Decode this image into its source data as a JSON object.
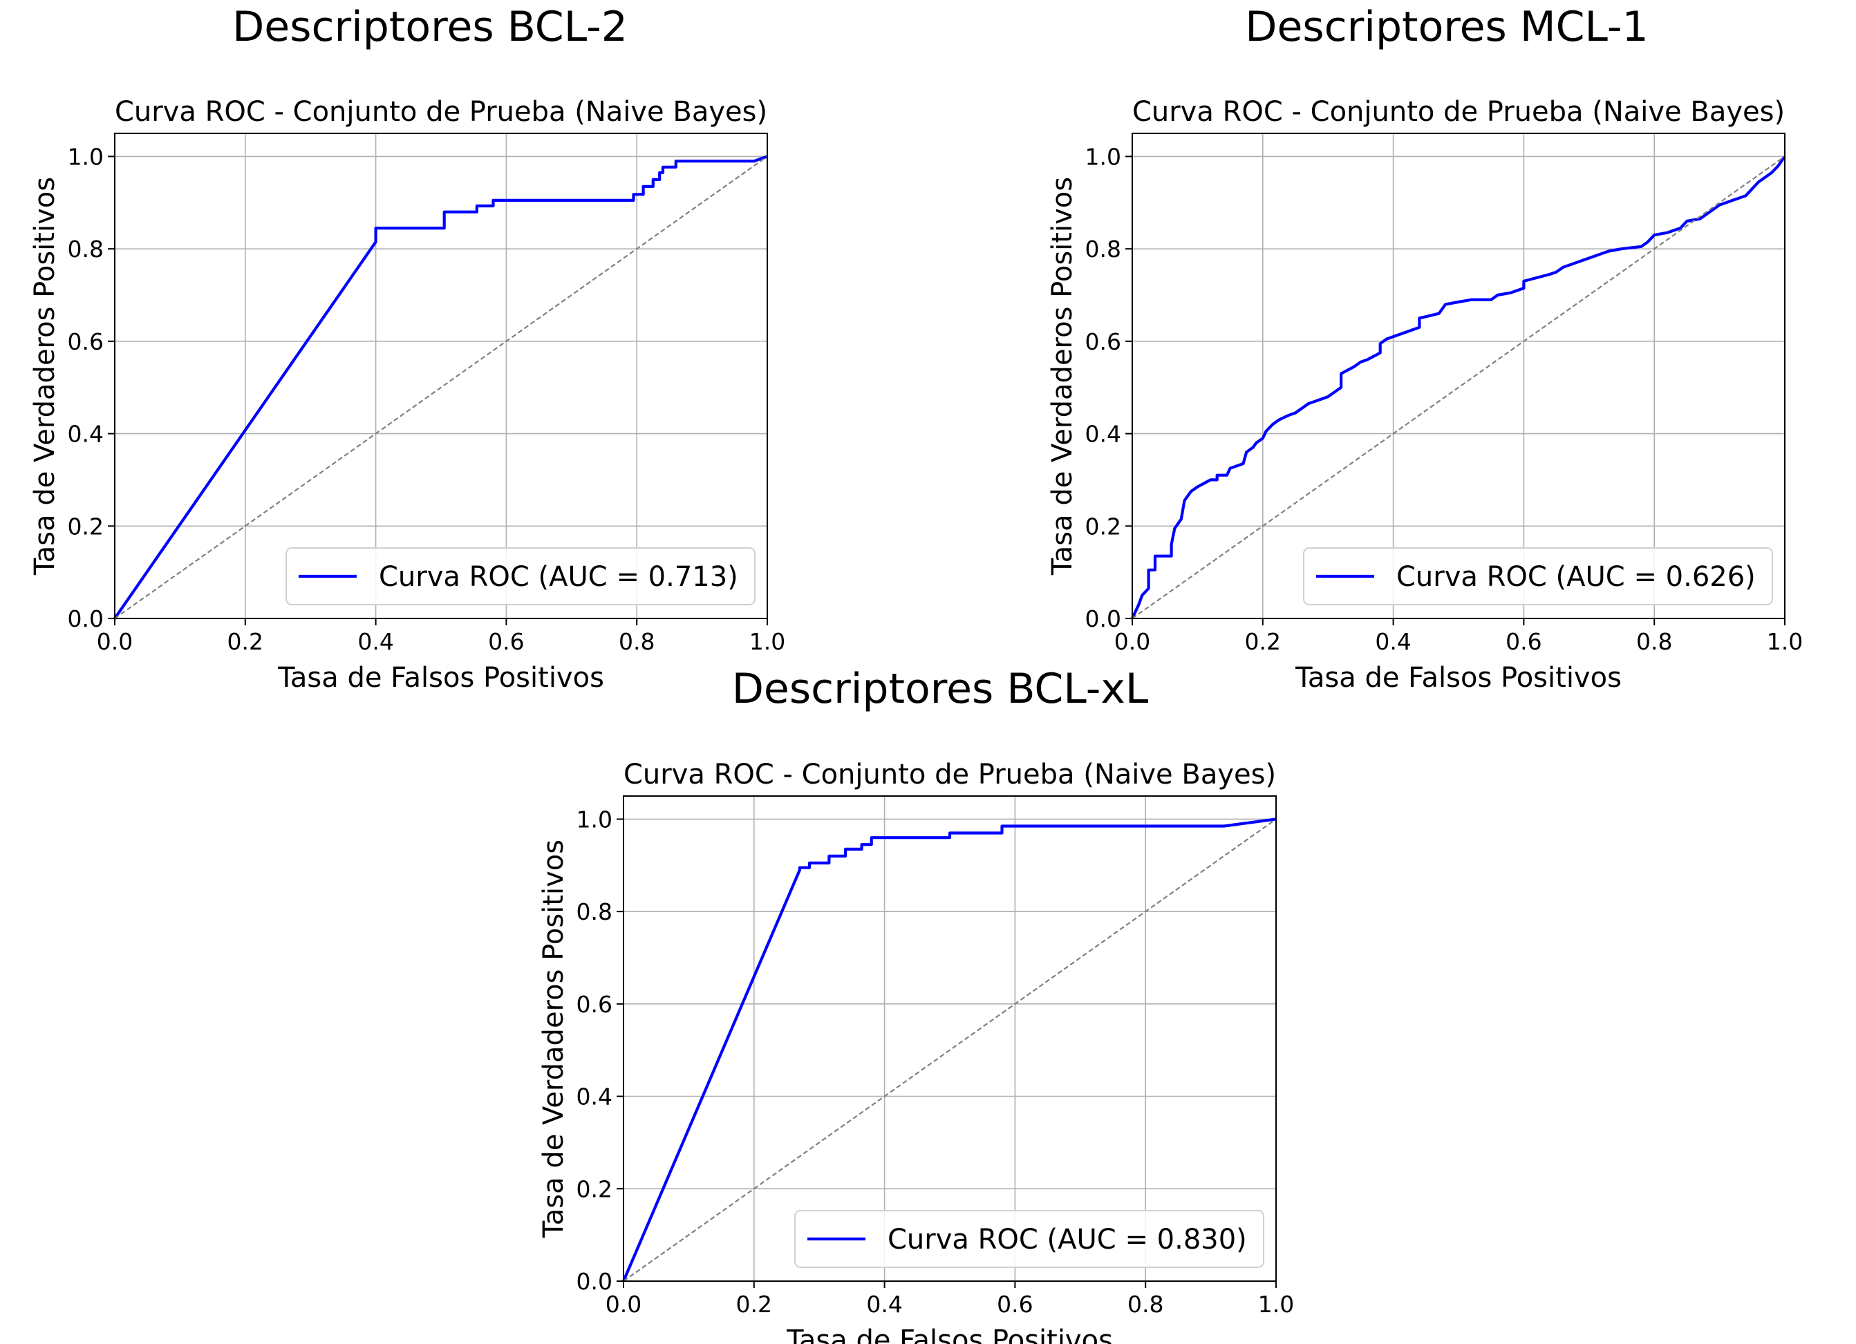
{
  "panels": [
    {
      "group_title": "Descriptores BCL-2",
      "chart_data": {
        "type": "line",
        "title": "Curva ROC - Conjunto de Prueba (Naive Bayes)",
        "xlabel": "Tasa de Falsos Positivos",
        "ylabel": "Tasa de Verdaderos Positivos",
        "xlim": [
          0,
          1
        ],
        "ylim": [
          0,
          1.05
        ],
        "xticks": [
          "0.0",
          "0.2",
          "0.4",
          "0.6",
          "0.8",
          "1.0"
        ],
        "yticks": [
          "0.0",
          "0.2",
          "0.4",
          "0.6",
          "0.8",
          "1.0"
        ],
        "grid": true,
        "legend_position": "lower-right",
        "series": [
          {
            "name": "Curva ROC (AUC = 0.713)",
            "color": "#0000ff",
            "x": [
              0,
              0.4,
              0.4,
              0.505,
              0.505,
              0.555,
              0.555,
              0.58,
              0.58,
              0.795,
              0.795,
              0.81,
              0.81,
              0.825,
              0.825,
              0.835,
              0.835,
              0.84,
              0.84,
              0.86,
              0.86,
              0.98,
              1.0
            ],
            "y": [
              0,
              0.815,
              0.845,
              0.845,
              0.88,
              0.88,
              0.893,
              0.893,
              0.905,
              0.905,
              0.918,
              0.918,
              0.935,
              0.935,
              0.95,
              0.95,
              0.965,
              0.965,
              0.977,
              0.977,
              0.99,
              0.99,
              1.0
            ]
          },
          {
            "name": "",
            "color": "#808080",
            "dashed": true,
            "x": [
              0,
              1
            ],
            "y": [
              0,
              1
            ]
          }
        ]
      }
    },
    {
      "group_title": "Descriptores MCL-1",
      "chart_data": {
        "type": "line",
        "title": "Curva ROC - Conjunto de Prueba (Naive Bayes)",
        "xlabel": "Tasa de Falsos Positivos",
        "ylabel": "Tasa de Verdaderos Positivos",
        "xlim": [
          0,
          1
        ],
        "ylim": [
          0,
          1.05
        ],
        "xticks": [
          "0.0",
          "0.2",
          "0.4",
          "0.6",
          "0.8",
          "1.0"
        ],
        "yticks": [
          "0.0",
          "0.2",
          "0.4",
          "0.6",
          "0.8",
          "1.0"
        ],
        "grid": true,
        "legend_position": "lower-right",
        "series": [
          {
            "name": "Curva ROC (AUC = 0.626)",
            "color": "#0000ff",
            "x": [
              0,
              0.01,
              0.015,
              0.025,
              0.025,
              0.035,
              0.035,
              0.06,
              0.06,
              0.065,
              0.07,
              0.075,
              0.08,
              0.085,
              0.09,
              0.1,
              0.12,
              0.13,
              0.13,
              0.145,
              0.15,
              0.16,
              0.17,
              0.175,
              0.185,
              0.19,
              0.2,
              0.205,
              0.215,
              0.225,
              0.24,
              0.25,
              0.27,
              0.28,
              0.3,
              0.31,
              0.32,
              0.32,
              0.34,
              0.35,
              0.36,
              0.38,
              0.38,
              0.39,
              0.42,
              0.43,
              0.44,
              0.44,
              0.47,
              0.48,
              0.5,
              0.52,
              0.55,
              0.56,
              0.58,
              0.6,
              0.6,
              0.64,
              0.65,
              0.66,
              0.68,
              0.7,
              0.72,
              0.73,
              0.75,
              0.78,
              0.79,
              0.8,
              0.82,
              0.83,
              0.84,
              0.85,
              0.87,
              0.88,
              0.89,
              0.9,
              0.92,
              0.94,
              0.95,
              0.96,
              0.97,
              0.98,
              0.99,
              1.0
            ],
            "y": [
              0,
              0.03,
              0.05,
              0.065,
              0.105,
              0.105,
              0.135,
              0.135,
              0.16,
              0.195,
              0.205,
              0.215,
              0.255,
              0.265,
              0.275,
              0.285,
              0.3,
              0.3,
              0.31,
              0.31,
              0.325,
              0.33,
              0.335,
              0.36,
              0.37,
              0.38,
              0.39,
              0.405,
              0.42,
              0.43,
              0.44,
              0.445,
              0.465,
              0.47,
              0.48,
              0.49,
              0.5,
              0.53,
              0.545,
              0.555,
              0.56,
              0.575,
              0.595,
              0.605,
              0.62,
              0.625,
              0.63,
              0.65,
              0.66,
              0.68,
              0.685,
              0.69,
              0.69,
              0.7,
              0.705,
              0.715,
              0.73,
              0.745,
              0.75,
              0.76,
              0.77,
              0.78,
              0.79,
              0.795,
              0.8,
              0.805,
              0.815,
              0.83,
              0.835,
              0.84,
              0.845,
              0.86,
              0.865,
              0.875,
              0.885,
              0.895,
              0.905,
              0.915,
              0.93,
              0.945,
              0.955,
              0.965,
              0.98,
              1.0
            ]
          },
          {
            "name": "",
            "color": "#808080",
            "dashed": true,
            "x": [
              0,
              1
            ],
            "y": [
              0,
              1
            ]
          }
        ]
      }
    },
    {
      "group_title": "Descriptores BCL-xL",
      "chart_data": {
        "type": "line",
        "title": "Curva ROC - Conjunto de Prueba (Naive Bayes)",
        "xlabel": "Tasa de Falsos Positivos",
        "ylabel": "Tasa de Verdaderos Positivos",
        "xlim": [
          0,
          1
        ],
        "ylim": [
          0,
          1.05
        ],
        "xticks": [
          "0.0",
          "0.2",
          "0.4",
          "0.6",
          "0.8",
          "1.0"
        ],
        "yticks": [
          "0.0",
          "0.2",
          "0.4",
          "0.6",
          "0.8",
          "1.0"
        ],
        "grid": true,
        "legend_position": "lower-right",
        "series": [
          {
            "name": "Curva ROC (AUC = 0.830)",
            "color": "#0000ff",
            "x": [
              0,
              0.27,
              0.27,
              0.285,
              0.285,
              0.315,
              0.315,
              0.34,
              0.34,
              0.365,
              0.365,
              0.38,
              0.38,
              0.5,
              0.5,
              0.58,
              0.58,
              0.92,
              1.0
            ],
            "y": [
              0,
              0.89,
              0.895,
              0.895,
              0.905,
              0.905,
              0.92,
              0.92,
              0.935,
              0.935,
              0.945,
              0.945,
              0.96,
              0.96,
              0.97,
              0.97,
              0.985,
              0.985,
              1.0
            ]
          },
          {
            "name": "",
            "color": "#808080",
            "dashed": true,
            "x": [
              0,
              1
            ],
            "y": [
              0,
              1
            ]
          }
        ]
      }
    }
  ]
}
